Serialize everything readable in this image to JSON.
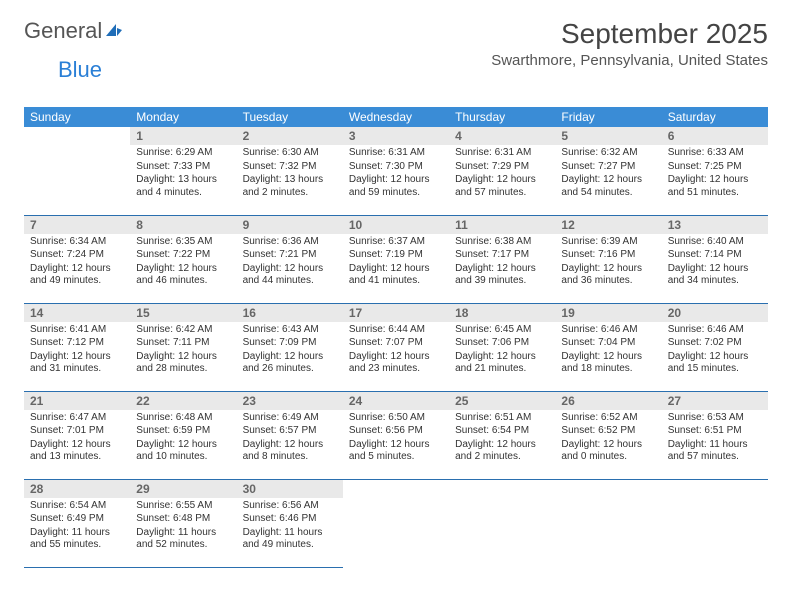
{
  "logo": {
    "part1": "General",
    "part2": "Blue",
    "icon_color": "#1f6db8"
  },
  "title": "September 2025",
  "subtitle": "Swarthmore, Pennsylvania, United States",
  "colors": {
    "header_bg": "#3a8cd6",
    "header_text": "#ffffff",
    "daynum_bg": "#e9e9e9",
    "daynum_text": "#666666",
    "border": "#2a6faf",
    "body_text": "#333333",
    "title_text": "#444444"
  },
  "typography": {
    "title_fontsize": 28,
    "subtitle_fontsize": 15,
    "header_fontsize": 12,
    "cell_fontsize": 10
  },
  "day_headers": [
    "Sunday",
    "Monday",
    "Tuesday",
    "Wednesday",
    "Thursday",
    "Friday",
    "Saturday"
  ],
  "weeks": [
    [
      null,
      {
        "n": "1",
        "sr": "Sunrise: 6:29 AM",
        "ss": "Sunset: 7:33 PM",
        "dl": "Daylight: 13 hours and 4 minutes."
      },
      {
        "n": "2",
        "sr": "Sunrise: 6:30 AM",
        "ss": "Sunset: 7:32 PM",
        "dl": "Daylight: 13 hours and 2 minutes."
      },
      {
        "n": "3",
        "sr": "Sunrise: 6:31 AM",
        "ss": "Sunset: 7:30 PM",
        "dl": "Daylight: 12 hours and 59 minutes."
      },
      {
        "n": "4",
        "sr": "Sunrise: 6:31 AM",
        "ss": "Sunset: 7:29 PM",
        "dl": "Daylight: 12 hours and 57 minutes."
      },
      {
        "n": "5",
        "sr": "Sunrise: 6:32 AM",
        "ss": "Sunset: 7:27 PM",
        "dl": "Daylight: 12 hours and 54 minutes."
      },
      {
        "n": "6",
        "sr": "Sunrise: 6:33 AM",
        "ss": "Sunset: 7:25 PM",
        "dl": "Daylight: 12 hours and 51 minutes."
      }
    ],
    [
      {
        "n": "7",
        "sr": "Sunrise: 6:34 AM",
        "ss": "Sunset: 7:24 PM",
        "dl": "Daylight: 12 hours and 49 minutes."
      },
      {
        "n": "8",
        "sr": "Sunrise: 6:35 AM",
        "ss": "Sunset: 7:22 PM",
        "dl": "Daylight: 12 hours and 46 minutes."
      },
      {
        "n": "9",
        "sr": "Sunrise: 6:36 AM",
        "ss": "Sunset: 7:21 PM",
        "dl": "Daylight: 12 hours and 44 minutes."
      },
      {
        "n": "10",
        "sr": "Sunrise: 6:37 AM",
        "ss": "Sunset: 7:19 PM",
        "dl": "Daylight: 12 hours and 41 minutes."
      },
      {
        "n": "11",
        "sr": "Sunrise: 6:38 AM",
        "ss": "Sunset: 7:17 PM",
        "dl": "Daylight: 12 hours and 39 minutes."
      },
      {
        "n": "12",
        "sr": "Sunrise: 6:39 AM",
        "ss": "Sunset: 7:16 PM",
        "dl": "Daylight: 12 hours and 36 minutes."
      },
      {
        "n": "13",
        "sr": "Sunrise: 6:40 AM",
        "ss": "Sunset: 7:14 PM",
        "dl": "Daylight: 12 hours and 34 minutes."
      }
    ],
    [
      {
        "n": "14",
        "sr": "Sunrise: 6:41 AM",
        "ss": "Sunset: 7:12 PM",
        "dl": "Daylight: 12 hours and 31 minutes."
      },
      {
        "n": "15",
        "sr": "Sunrise: 6:42 AM",
        "ss": "Sunset: 7:11 PM",
        "dl": "Daylight: 12 hours and 28 minutes."
      },
      {
        "n": "16",
        "sr": "Sunrise: 6:43 AM",
        "ss": "Sunset: 7:09 PM",
        "dl": "Daylight: 12 hours and 26 minutes."
      },
      {
        "n": "17",
        "sr": "Sunrise: 6:44 AM",
        "ss": "Sunset: 7:07 PM",
        "dl": "Daylight: 12 hours and 23 minutes."
      },
      {
        "n": "18",
        "sr": "Sunrise: 6:45 AM",
        "ss": "Sunset: 7:06 PM",
        "dl": "Daylight: 12 hours and 21 minutes."
      },
      {
        "n": "19",
        "sr": "Sunrise: 6:46 AM",
        "ss": "Sunset: 7:04 PM",
        "dl": "Daylight: 12 hours and 18 minutes."
      },
      {
        "n": "20",
        "sr": "Sunrise: 6:46 AM",
        "ss": "Sunset: 7:02 PM",
        "dl": "Daylight: 12 hours and 15 minutes."
      }
    ],
    [
      {
        "n": "21",
        "sr": "Sunrise: 6:47 AM",
        "ss": "Sunset: 7:01 PM",
        "dl": "Daylight: 12 hours and 13 minutes."
      },
      {
        "n": "22",
        "sr": "Sunrise: 6:48 AM",
        "ss": "Sunset: 6:59 PM",
        "dl": "Daylight: 12 hours and 10 minutes."
      },
      {
        "n": "23",
        "sr": "Sunrise: 6:49 AM",
        "ss": "Sunset: 6:57 PM",
        "dl": "Daylight: 12 hours and 8 minutes."
      },
      {
        "n": "24",
        "sr": "Sunrise: 6:50 AM",
        "ss": "Sunset: 6:56 PM",
        "dl": "Daylight: 12 hours and 5 minutes."
      },
      {
        "n": "25",
        "sr": "Sunrise: 6:51 AM",
        "ss": "Sunset: 6:54 PM",
        "dl": "Daylight: 12 hours and 2 minutes."
      },
      {
        "n": "26",
        "sr": "Sunrise: 6:52 AM",
        "ss": "Sunset: 6:52 PM",
        "dl": "Daylight: 12 hours and 0 minutes."
      },
      {
        "n": "27",
        "sr": "Sunrise: 6:53 AM",
        "ss": "Sunset: 6:51 PM",
        "dl": "Daylight: 11 hours and 57 minutes."
      }
    ],
    [
      {
        "n": "28",
        "sr": "Sunrise: 6:54 AM",
        "ss": "Sunset: 6:49 PM",
        "dl": "Daylight: 11 hours and 55 minutes."
      },
      {
        "n": "29",
        "sr": "Sunrise: 6:55 AM",
        "ss": "Sunset: 6:48 PM",
        "dl": "Daylight: 11 hours and 52 minutes."
      },
      {
        "n": "30",
        "sr": "Sunrise: 6:56 AM",
        "ss": "Sunset: 6:46 PM",
        "dl": "Daylight: 11 hours and 49 minutes."
      },
      null,
      null,
      null,
      null
    ]
  ]
}
